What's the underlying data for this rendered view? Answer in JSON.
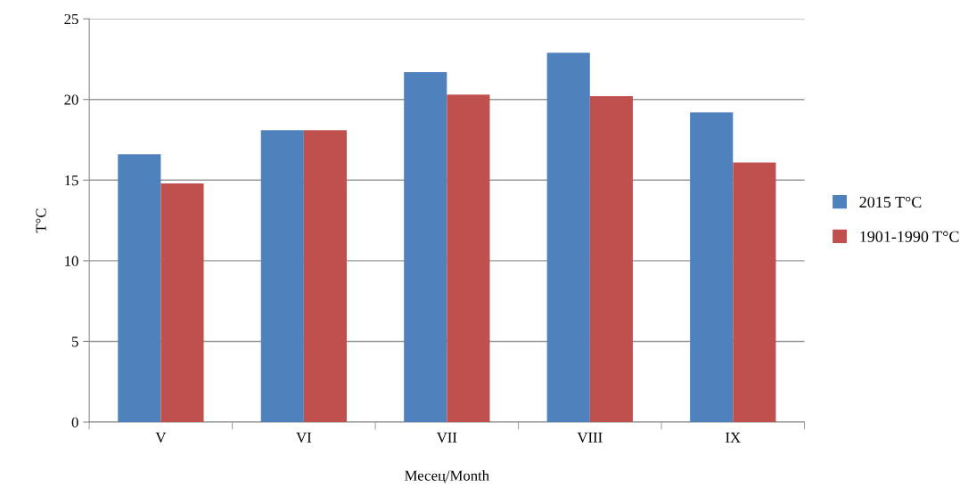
{
  "chart_data": {
    "type": "bar",
    "categories": [
      "V",
      "VI",
      "VII",
      "VIII",
      "IX"
    ],
    "series": [
      {
        "name": "2015 T°C",
        "color": "#4f81bd",
        "values": [
          16.6,
          18.1,
          21.7,
          22.9,
          19.2
        ]
      },
      {
        "name": "1901-1990 T°C",
        "color": "#c0504d",
        "values": [
          14.8,
          18.1,
          20.3,
          20.2,
          16.1
        ]
      }
    ],
    "xlabel": "Месец/Month",
    "ylabel": "T°C",
    "ylim": [
      0,
      25
    ],
    "yticks": [
      0,
      5,
      10,
      15,
      20,
      25
    ],
    "grid": "y",
    "legend": "right"
  }
}
